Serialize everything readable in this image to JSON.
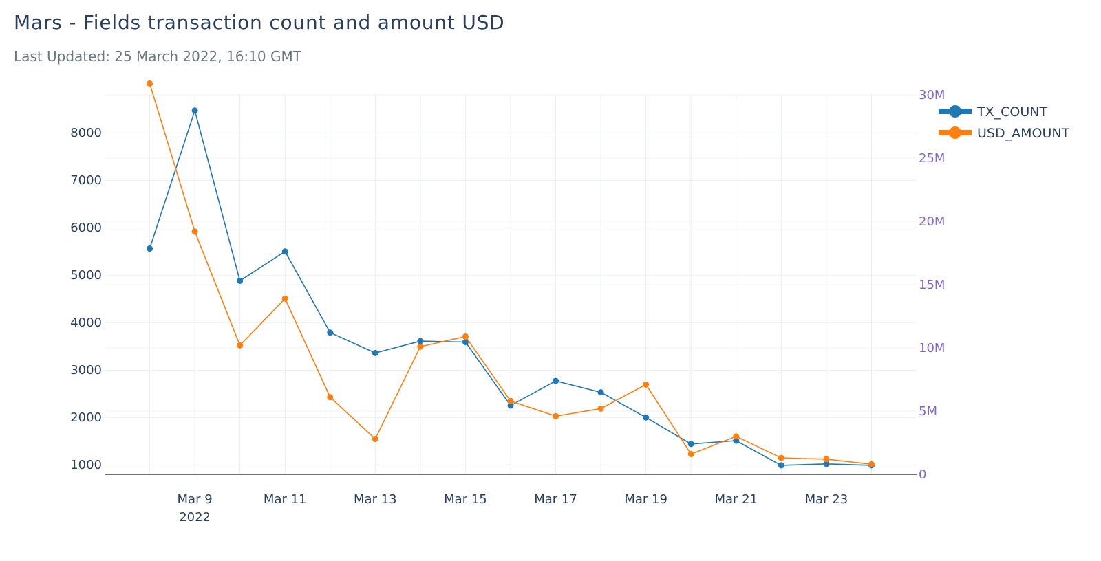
{
  "header": {
    "title": "Mars - Fields transaction count and amount USD",
    "subtitle": "Last Updated: 25 March 2022, 16:10 GMT"
  },
  "chart_data": {
    "type": "line",
    "x": [
      "2022-03-08",
      "2022-03-09",
      "2022-03-10",
      "2022-03-11",
      "2022-03-12",
      "2022-03-13",
      "2022-03-14",
      "2022-03-15",
      "2022-03-16",
      "2022-03-17",
      "2022-03-18",
      "2022-03-19",
      "2022-03-20",
      "2022-03-21",
      "2022-03-22",
      "2022-03-23",
      "2022-03-24"
    ],
    "x_tick_labels": [
      {
        "date": "2022-03-09",
        "label": "Mar 9",
        "sublabel": "2022"
      },
      {
        "date": "2022-03-11",
        "label": "Mar 11"
      },
      {
        "date": "2022-03-13",
        "label": "Mar 13"
      },
      {
        "date": "2022-03-15",
        "label": "Mar 15"
      },
      {
        "date": "2022-03-17",
        "label": "Mar 17"
      },
      {
        "date": "2022-03-19",
        "label": "Mar 19"
      },
      {
        "date": "2022-03-21",
        "label": "Mar 21"
      },
      {
        "date": "2022-03-23",
        "label": "Mar 23"
      }
    ],
    "xlim": [
      "2022-03-07",
      "2022-03-25"
    ],
    "y_left": {
      "ylim": [
        800,
        8800
      ],
      "ticks": [
        1000,
        2000,
        3000,
        4000,
        5000,
        6000,
        7000,
        8000
      ],
      "tick_labels": [
        "1000",
        "2000",
        "3000",
        "4000",
        "5000",
        "6000",
        "7000",
        "8000"
      ]
    },
    "y_right": {
      "ylim": [
        0,
        30000000
      ],
      "ticks": [
        0,
        5000000,
        10000000,
        15000000,
        20000000,
        25000000,
        30000000
      ],
      "tick_labels": [
        "0",
        "5M",
        "10M",
        "15M",
        "20M",
        "25M",
        "30M"
      ],
      "color": "#8467c6"
    },
    "series": [
      {
        "name": "TX_COUNT",
        "axis": "left",
        "color": "#1f77b4",
        "values": [
          5560,
          8470,
          4880,
          5500,
          3790,
          3360,
          3610,
          3590,
          2250,
          2770,
          2530,
          2000,
          1440,
          1510,
          990,
          1020,
          990
        ]
      },
      {
        "name": "USD_AMOUNT",
        "axis": "right",
        "color": "#ff7f0e",
        "values": [
          30900000,
          19200000,
          10200000,
          13900000,
          6100000,
          2800000,
          10100000,
          10900000,
          5800000,
          4600000,
          5200000,
          7100000,
          1600000,
          3000000,
          1300000,
          1200000,
          800000
        ]
      }
    ],
    "grid": true,
    "legend": "top-right"
  }
}
